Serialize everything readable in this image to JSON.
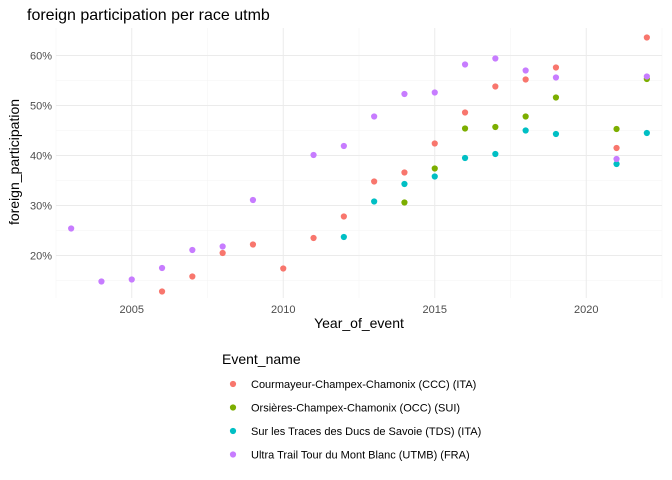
{
  "chart_data": {
    "type": "scatter",
    "title": "foreign participation per race utmb",
    "xlabel": "Year_of_event",
    "ylabel": "foreign_participation",
    "xlim": [
      2002.5,
      2022.5
    ],
    "ylim": [
      0.115,
      0.655
    ],
    "x_ticks": [
      2005,
      2010,
      2015,
      2020
    ],
    "x_tick_labels": [
      "2005",
      "2010",
      "2015",
      "2020"
    ],
    "x_minor": [
      2002.5,
      2007.5,
      2012.5,
      2017.5,
      2022.5
    ],
    "y_ticks": [
      0.2,
      0.3,
      0.4,
      0.5,
      0.6
    ],
    "y_tick_labels": [
      "20%",
      "30%",
      "40%",
      "50%",
      "60%"
    ],
    "y_minor": [
      0.15,
      0.25,
      0.35,
      0.45,
      0.55
    ],
    "grid": true,
    "legend_title": "Event_name",
    "legend_position": "bottom",
    "series": [
      {
        "name": "Courmayeur-Champex-Chamonix (CCC) (ITA)",
        "color": "#F8766D",
        "x": [
          2006,
          2007,
          2008,
          2009,
          2010,
          2011,
          2012,
          2013,
          2014,
          2015,
          2016,
          2017,
          2018,
          2019,
          2021,
          2022
        ],
        "y": [
          0.128,
          0.158,
          0.205,
          0.222,
          0.174,
          0.235,
          0.278,
          0.348,
          0.366,
          0.424,
          0.486,
          0.538,
          0.552,
          0.576,
          0.415,
          0.636
        ]
      },
      {
        "name": "Orsières-Champex-Chamonix (OCC) (SUI)",
        "color": "#7CAE00",
        "x": [
          2014,
          2015,
          2016,
          2017,
          2018,
          2019,
          2021,
          2022
        ],
        "y": [
          0.306,
          0.374,
          0.454,
          0.457,
          0.478,
          0.516,
          0.453,
          0.553
        ]
      },
      {
        "name": "Sur les Traces des Ducs de Savoie (TDS) (ITA)",
        "color": "#00BFC4",
        "x": [
          2012,
          2013,
          2014,
          2015,
          2016,
          2017,
          2018,
          2019,
          2021,
          2022
        ],
        "y": [
          0.237,
          0.308,
          0.343,
          0.358,
          0.395,
          0.403,
          0.45,
          0.443,
          0.383,
          0.445
        ]
      },
      {
        "name": "Ultra Trail Tour du Mont Blanc (UTMB) (FRA)",
        "color": "#C77CFF",
        "x": [
          2003,
          2004,
          2005,
          2006,
          2007,
          2008,
          2009,
          2011,
          2012,
          2013,
          2014,
          2015,
          2016,
          2017,
          2018,
          2019,
          2021,
          2022
        ],
        "y": [
          0.254,
          0.148,
          0.152,
          0.175,
          0.211,
          0.218,
          0.311,
          0.401,
          0.419,
          0.478,
          0.523,
          0.526,
          0.582,
          0.594,
          0.57,
          0.556,
          0.393,
          0.558
        ]
      }
    ]
  }
}
